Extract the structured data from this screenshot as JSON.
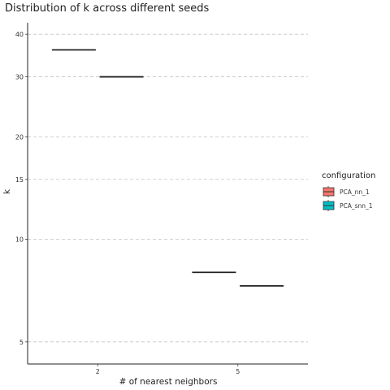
{
  "chart_data": {
    "type": "box",
    "title": "Distribution of k across different seeds",
    "xlabel": "# of nearest neighbors",
    "ylabel": "k",
    "categories": [
      "2",
      "5"
    ],
    "y_scale": "log",
    "ylim": [
      4.5,
      43
    ],
    "y_ticks": [
      5,
      10,
      15,
      20,
      30,
      40
    ],
    "grid": "horizontal-dashed",
    "legend_position": "right",
    "legend_title": "configuration",
    "series": [
      {
        "name": "PCA_nn_1",
        "color": "#f8766d",
        "values": [
          36,
          8
        ]
      },
      {
        "name": "PCA_snn_1",
        "color": "#00bfc4",
        "values": [
          30,
          7.3
        ]
      }
    ]
  }
}
